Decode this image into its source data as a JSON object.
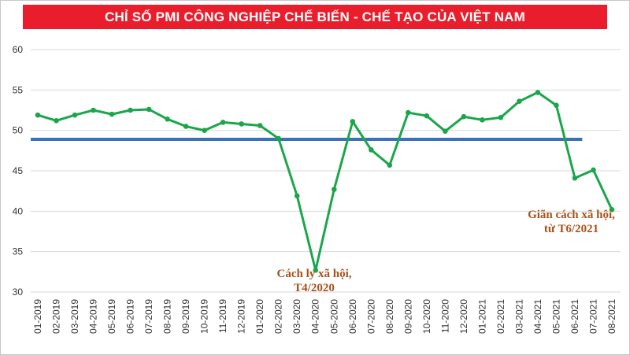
{
  "header": {
    "title": "CHỈ SỐ PMI CÔNG NGHIỆP CHẾ BIẾN - CHẾ TẠO CỦA VIỆT NAM"
  },
  "colors": {
    "title_bg": "#E91D2C",
    "title_text": "#FFFFFF",
    "line": "#1BA64B",
    "reference": "#3973B5",
    "grid": "#D9D9D9",
    "axis_text": "#333333",
    "annotation": "#A8511B",
    "background": "#FFFFFF",
    "border": "#C8C8C8"
  },
  "annotations": [
    {
      "line1": "Cách ly xã hội,",
      "line2": "T4/2020"
    },
    {
      "line1": "Giãn cách xã hội,",
      "line2": "từ T6/2021"
    }
  ],
  "chart_data": {
    "type": "line",
    "title": "CHỈ SỐ PMI CÔNG NGHIỆP CHẾ BIẾN - CHẾ TẠO CỦA VIỆT NAM",
    "categories": [
      "01-2019",
      "02-2019",
      "03-2019",
      "04-2019",
      "05-2019",
      "06-2019",
      "07-2019",
      "08-2019",
      "09-2019",
      "10-2019",
      "11-2019",
      "12-2019",
      "01-2020",
      "02-2020",
      "03-2020",
      "04-2020",
      "05-2020",
      "06-2020",
      "07-2020",
      "08-2020",
      "09-2020",
      "10-2020",
      "11-2020",
      "12-2020",
      "01-2021",
      "02-2021",
      "03-2021",
      "04-2021",
      "05-2021",
      "06-2021",
      "07-2021",
      "08-2021"
    ],
    "series": [
      {
        "name": "PMI",
        "values": [
          51.9,
          51.2,
          51.9,
          52.5,
          52.0,
          52.5,
          52.6,
          51.4,
          50.5,
          50.0,
          51.0,
          50.8,
          50.6,
          49.0,
          41.9,
          32.7,
          42.7,
          51.1,
          47.6,
          45.7,
          52.2,
          51.8,
          49.9,
          51.7,
          51.3,
          51.6,
          53.6,
          54.7,
          53.1,
          44.1,
          45.1,
          40.2
        ]
      }
    ],
    "reference_line": {
      "value": 48.9,
      "end_category_index": 29.4
    },
    "xlabel": "",
    "ylabel": "",
    "ylim": [
      30,
      60
    ],
    "yticks": [
      30,
      35,
      40,
      45,
      50,
      55,
      60
    ],
    "grid": true,
    "legend": false,
    "legend_position": "none"
  }
}
